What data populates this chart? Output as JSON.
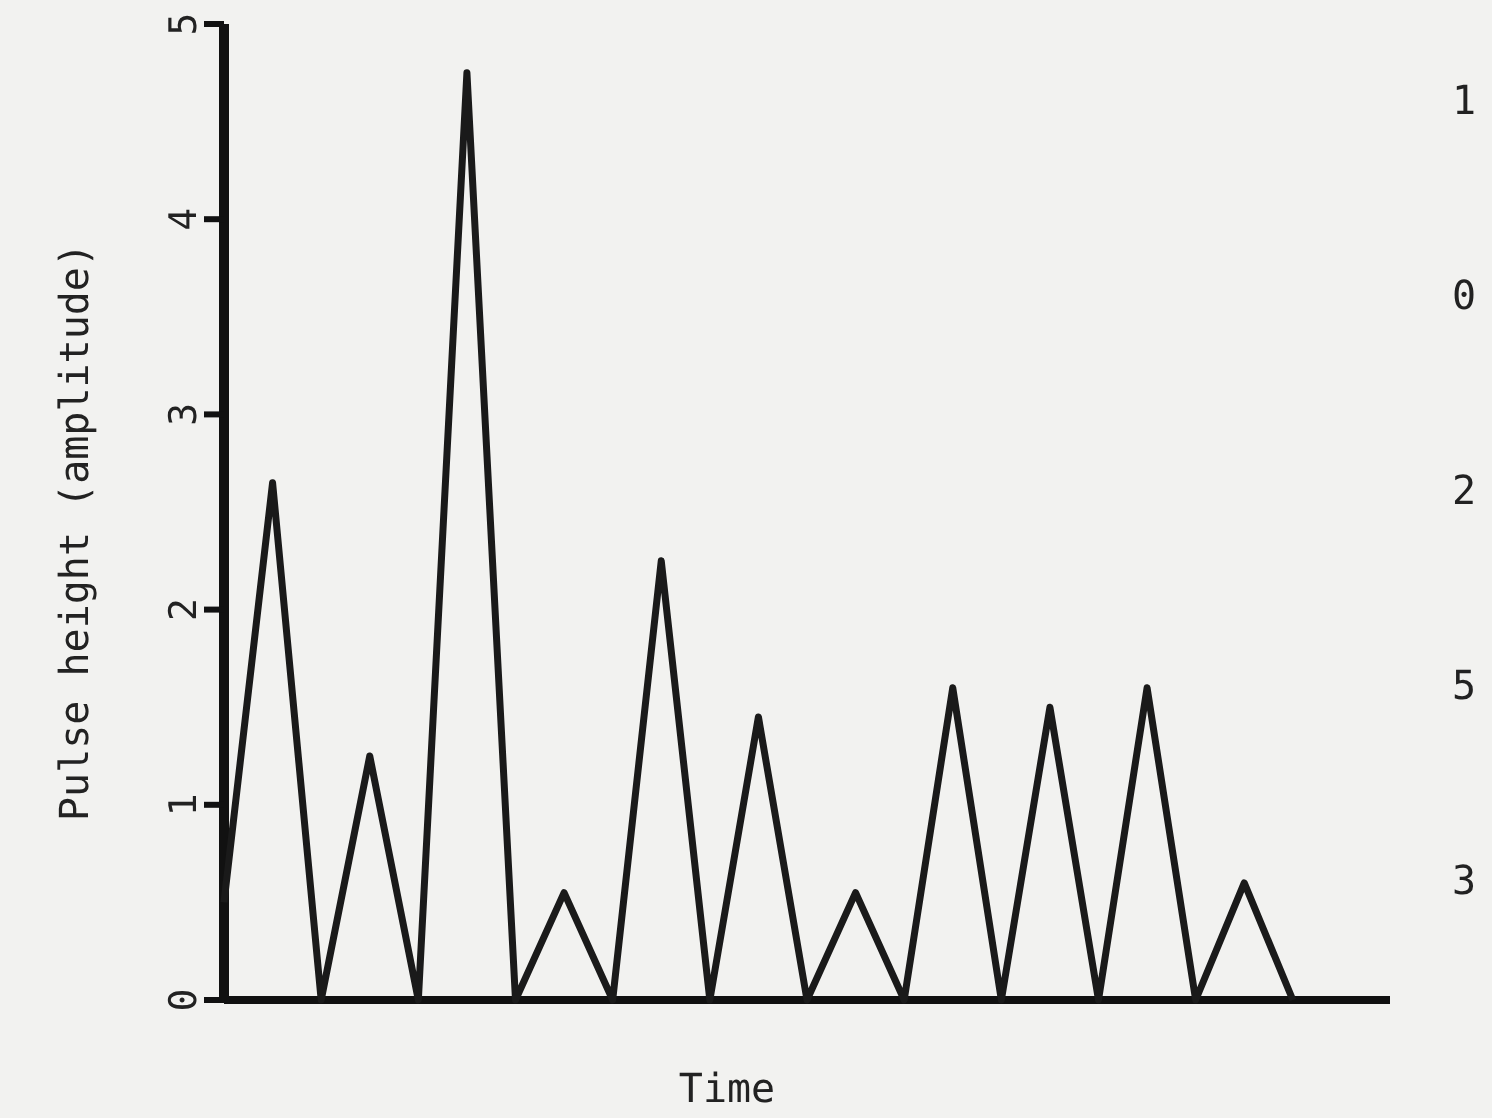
{
  "chart_data": {
    "type": "line",
    "xlabel": "Time",
    "ylabel": "Pulse height (amplitude)",
    "categories": [
      null,
      null,
      null,
      null,
      null,
      null,
      null,
      null,
      null,
      null,
      null,
      null,
      null,
      null,
      null,
      null,
      null,
      null,
      null,
      null,
      null,
      null,
      null
    ],
    "values": [
      0.5,
      2.65,
      0,
      1.25,
      0,
      4.75,
      0,
      0.55,
      0,
      2.25,
      0,
      1.45,
      0,
      0.55,
      0,
      1.6,
      0,
      1.5,
      0,
      1.6,
      0,
      0.6,
      0
    ],
    "color": "#1a1a1a",
    "ylim": [
      0,
      5
    ],
    "yticks": [
      0,
      1,
      2,
      3,
      4,
      5
    ],
    "marker": "none",
    "line_style": "solid",
    "tick_labels": "y",
    "annotations": [
      "1",
      "0",
      "2",
      "5",
      "3"
    ]
  }
}
